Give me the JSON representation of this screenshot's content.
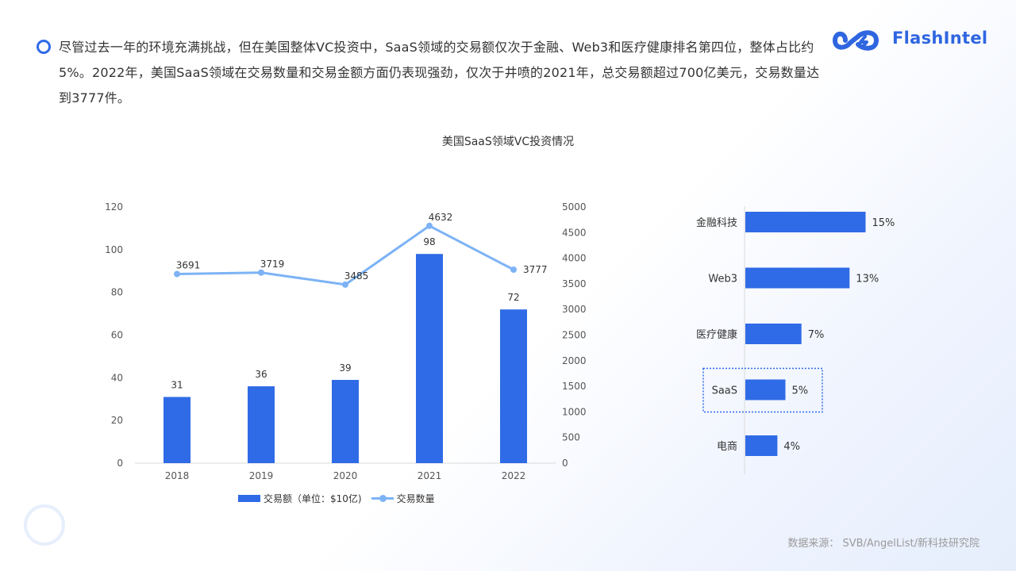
{
  "summary": {
    "text": "尽管过去一年的环境充满挑战，但在美国整体VC投资中，SaaS领域的交易额仅次于金融、Web3和医疗健康排名第四位，整体占比约5%。2022年，美国SaaS领域在交易数量和交易金额方面仍表现强劲，仅次于井喷的2021年，总交易额超过700亿美元，交易数量达到3777件。"
  },
  "brand": {
    "name": "FlashIntel",
    "color": "#2f66e0"
  },
  "chart_title": "美国SaaS领域VC投资情况",
  "colors": {
    "bar": "#2f6be6",
    "line": "#7db3f5",
    "highlight_border": "#2f6ae8"
  },
  "chart_data": [
    {
      "type": "bar",
      "categories": [
        "2018",
        "2019",
        "2020",
        "2021",
        "2022"
      ],
      "series": [
        {
          "name": "交易额（单位：$10亿)",
          "type": "bar",
          "axis": "left",
          "values": [
            31,
            36,
            39,
            98,
            72
          ]
        },
        {
          "name": "交易数量",
          "type": "line",
          "axis": "right",
          "values": [
            3691,
            3719,
            3485,
            4632,
            3777
          ]
        }
      ],
      "ylim_left": [
        0,
        120
      ],
      "yticks_left": [
        0,
        20,
        40,
        60,
        80,
        100,
        120
      ],
      "ylim_right": [
        0,
        5000
      ],
      "yticks_right": [
        0,
        500,
        1000,
        1500,
        2000,
        2500,
        3000,
        3500,
        4000,
        4500,
        5000
      ],
      "legend_position": "bottom",
      "grid": false
    },
    {
      "type": "bar",
      "orientation": "horizontal",
      "categories": [
        "金融科技",
        "Web3",
        "医疗健康",
        "SaaS",
        "电商"
      ],
      "values": [
        15,
        13,
        7,
        5,
        4
      ],
      "value_labels": [
        "15%",
        "13%",
        "7%",
        "5%",
        "4%"
      ],
      "highlight": "SaaS",
      "grid": false
    }
  ],
  "legend": {
    "bar_label": "交易额（单位：$10亿)",
    "line_label": "交易数量"
  },
  "source": "数据来源： SVB/AngelList/新科技研究院"
}
